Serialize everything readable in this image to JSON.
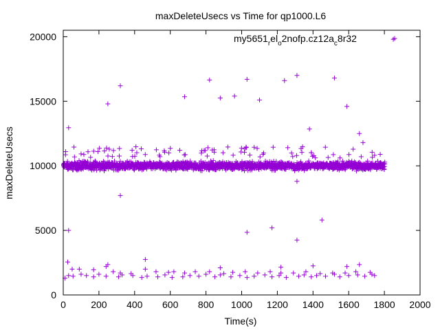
{
  "chart_data": {
    "type": "scatter",
    "title": "maxDeleteUsecs vs Time for qp1000.L6",
    "xlabel": "Time(s)",
    "ylabel": "maxDeleteUsecs",
    "xlim": [
      0,
      2000
    ],
    "ylim": [
      0,
      20500
    ],
    "xticks": [
      0,
      200,
      400,
      600,
      800,
      1000,
      1200,
      1400,
      1600,
      1800,
      2000
    ],
    "yticks": [
      0,
      5000,
      10000,
      15000,
      20000
    ],
    "grid": false,
    "legend_position": "top-right",
    "marker": "+",
    "series": [
      {
        "name": "my5651_rel_o2nofp.cz12a_c8r32",
        "name_parts": {
          "a": "my5651",
          "b": "r",
          "c": "el",
          "d": "o",
          "e": "2nofp.cz12a",
          "f": "c",
          "g": "8r32"
        },
        "color": "#9400d3",
        "points": [
          [
            1850,
            19800
          ],
          [
            1310,
            17000
          ],
          [
            1520,
            16800
          ],
          [
            820,
            16650
          ],
          [
            1030,
            16700
          ],
          [
            1240,
            16600
          ],
          [
            320,
            16200
          ],
          [
            960,
            15400
          ],
          [
            680,
            15350
          ],
          [
            880,
            15250
          ],
          [
            1100,
            15100
          ],
          [
            250,
            14800
          ],
          [
            1590,
            14600
          ],
          [
            1380,
            12850
          ],
          [
            30,
            12950
          ],
          [
            1660,
            12500
          ],
          [
            1680,
            11800
          ],
          [
            60,
            11450
          ],
          [
            1310,
            8800
          ],
          [
            320,
            7700
          ],
          [
            1450,
            5800
          ],
          [
            1170,
            5200
          ],
          [
            30,
            5000
          ],
          [
            1030,
            4850
          ],
          [
            1310,
            4250
          ],
          [
            460,
            2750
          ],
          [
            25,
            2550
          ],
          [
            250,
            2350
          ],
          [
            1660,
            2350
          ],
          [
            1590,
            2200
          ],
          [
            1400,
            2250
          ],
          [
            1220,
            2150
          ],
          [
            880,
            2100
          ],
          [
            240,
            2200
          ],
          [
            50,
            2000
          ],
          [
            90,
            2000
          ],
          [
            170,
            1950
          ],
          [
            280,
            1800
          ],
          [
            320,
            1700
          ],
          [
            380,
            1650
          ],
          [
            460,
            2000
          ],
          [
            520,
            1800
          ],
          [
            590,
            1750
          ],
          [
            620,
            1800
          ],
          [
            680,
            1700
          ],
          [
            740,
            1800
          ],
          [
            820,
            1800
          ],
          [
            900,
            1650
          ],
          [
            950,
            1750
          ],
          [
            1020,
            1800
          ],
          [
            1090,
            1700
          ],
          [
            1160,
            1800
          ],
          [
            1220,
            1700
          ],
          [
            1290,
            1700
          ],
          [
            1360,
            1800
          ],
          [
            1440,
            1650
          ],
          [
            1510,
            1700
          ],
          [
            1580,
            1700
          ],
          [
            1640,
            1800
          ],
          [
            1720,
            1750
          ],
          [
            10,
            1300
          ],
          [
            30,
            1500
          ],
          [
            55,
            1450
          ],
          [
            100,
            1600
          ],
          [
            130,
            1500
          ],
          [
            170,
            1400
          ],
          [
            200,
            1600
          ],
          [
            240,
            1450
          ],
          [
            310,
            1400
          ],
          [
            330,
            1550
          ],
          [
            390,
            1500
          ],
          [
            440,
            1350
          ],
          [
            470,
            1450
          ],
          [
            530,
            1400
          ],
          [
            570,
            1550
          ],
          [
            610,
            1350
          ],
          [
            670,
            1400
          ],
          [
            710,
            1500
          ],
          [
            760,
            1450
          ],
          [
            800,
            1600
          ],
          [
            850,
            1400
          ],
          [
            880,
            1550
          ],
          [
            940,
            1400
          ],
          [
            990,
            1500
          ],
          [
            1030,
            1350
          ],
          [
            1070,
            1450
          ],
          [
            1130,
            1550
          ],
          [
            1170,
            1400
          ],
          [
            1210,
            1500
          ],
          [
            1250,
            1350
          ],
          [
            1320,
            1450
          ],
          [
            1350,
            1550
          ],
          [
            1390,
            1400
          ],
          [
            1420,
            1500
          ],
          [
            1470,
            1450
          ],
          [
            1520,
            1600
          ],
          [
            1550,
            1400
          ],
          [
            1600,
            1500
          ],
          [
            1650,
            1550
          ],
          [
            1690,
            1450
          ],
          [
            1730,
            1600
          ],
          [
            1745,
            1500
          ],
          [
            1000,
            10000
          ],
          [
            1002,
            10300
          ],
          [
            1005,
            9800
          ]
        ]
      }
    ],
    "dense_band": {
      "x_range": [
        0,
        1800
      ],
      "center": 10000,
      "spread": 450
    }
  }
}
